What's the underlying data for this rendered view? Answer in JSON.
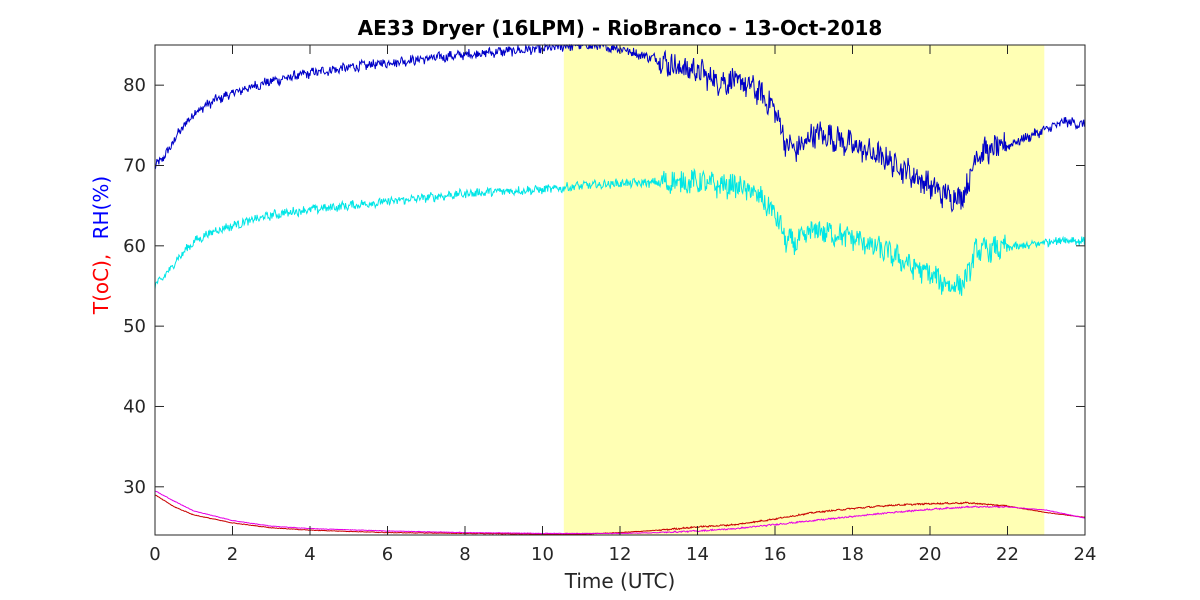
{
  "chart_data": {
    "type": "line",
    "title": "AE33 Dryer (16LPM)  - RioBranco - 13-Oct-2018",
    "xlabel": "Time (UTC)",
    "ylabel_parts": [
      {
        "text": "T(oC),",
        "color": "#ff0000"
      },
      {
        "text": "RH(%)",
        "color": "#0000ff"
      }
    ],
    "xlim": [
      0,
      24
    ],
    "ylim": [
      24,
      85
    ],
    "x_ticks": [
      0,
      2,
      4,
      6,
      8,
      10,
      12,
      14,
      16,
      18,
      20,
      22,
      24
    ],
    "y_ticks": [
      30,
      40,
      50,
      60,
      70,
      80
    ],
    "grid": false,
    "shaded_region": {
      "x_start": 10.55,
      "x_end": 22.95,
      "color": "#ffffb4"
    },
    "series": [
      {
        "color": "#0000c8",
        "noise": 0.9,
        "x": [
          0,
          0.3,
          0.6,
          1,
          1.5,
          2,
          2.5,
          3,
          3.5,
          4,
          5,
          6,
          7,
          8,
          9,
          10,
          10.5,
          11,
          11.5,
          12,
          12.5,
          13,
          13.5,
          14,
          14.5,
          15,
          15.5,
          16,
          16.3,
          16.6,
          17,
          17.5,
          18,
          18.5,
          19,
          19.5,
          20,
          20.3,
          20.6,
          20.9,
          21.2,
          21.5,
          22,
          22.5,
          23,
          23.5,
          24
        ],
        "y": [
          69.8,
          71.5,
          74,
          76.5,
          78,
          79,
          79.8,
          80.5,
          81,
          81.5,
          82.2,
          82.8,
          83.3,
          83.8,
          84.2,
          84.5,
          84.8,
          85,
          84.8,
          84.6,
          83.8,
          83.2,
          82.2,
          81.8,
          80.5,
          80.5,
          79.5,
          77,
          72.5,
          72,
          74,
          73.5,
          72.5,
          71.5,
          70.5,
          69,
          67.5,
          66.5,
          66,
          66.5,
          71.5,
          71.8,
          72.5,
          73.5,
          74.5,
          75.5,
          75
        ]
      },
      {
        "color": "#00e6e6",
        "noise": 0.8,
        "x": [
          0,
          0.3,
          0.6,
          1,
          1.5,
          2,
          2.5,
          3,
          3.5,
          4,
          5,
          6,
          7,
          8,
          9,
          10,
          10.5,
          11,
          11.5,
          12,
          12.5,
          13,
          13.5,
          14,
          14.5,
          15,
          15.5,
          16,
          16.3,
          16.6,
          17,
          17.5,
          18,
          18.5,
          19,
          19.5,
          20,
          20.3,
          20.6,
          20.9,
          21.2,
          21.5,
          22,
          22.5,
          23,
          23.5,
          24
        ],
        "y": [
          55,
          56.5,
          58.5,
          60.5,
          61.8,
          62.5,
          63.2,
          63.8,
          64.2,
          64.5,
          65,
          65.5,
          66,
          66.5,
          66.8,
          67,
          67.2,
          67.5,
          67.6,
          67.8,
          67.8,
          67.9,
          67.9,
          68,
          67.5,
          67.5,
          66.5,
          64,
          60.5,
          60.5,
          62,
          61.5,
          61,
          60,
          59,
          57.5,
          56.5,
          55.5,
          55,
          55.5,
          59.5,
          59.5,
          59.8,
          60,
          60.5,
          60.8,
          60.5
        ]
      },
      {
        "color": "#c80000",
        "noise": 0.05,
        "x": [
          0,
          0.5,
          1,
          2,
          3,
          4,
          6,
          8,
          10,
          11,
          12,
          13,
          14,
          15,
          16,
          17,
          18,
          19,
          20,
          21,
          22,
          23,
          24
        ],
        "y": [
          29,
          27.5,
          26.5,
          25.5,
          24.9,
          24.6,
          24.3,
          24.2,
          24.1,
          24.1,
          24.3,
          24.6,
          25,
          25.3,
          26,
          26.8,
          27.3,
          27.7,
          27.9,
          28,
          27.6,
          26.8,
          26.2
        ]
      },
      {
        "color": "#e600e6",
        "noise": 0.05,
        "x": [
          0,
          0.5,
          1,
          2,
          3,
          4,
          6,
          8,
          10,
          11,
          12,
          13,
          14,
          15,
          16,
          17,
          18,
          19,
          20,
          21,
          22,
          23,
          24
        ],
        "y": [
          29.5,
          28.2,
          27,
          25.8,
          25.1,
          24.8,
          24.5,
          24.3,
          24.2,
          24.2,
          24.2,
          24.3,
          24.5,
          24.8,
          25.3,
          25.8,
          26.3,
          26.8,
          27.2,
          27.5,
          27.5,
          27.1,
          26.1
        ]
      }
    ]
  }
}
